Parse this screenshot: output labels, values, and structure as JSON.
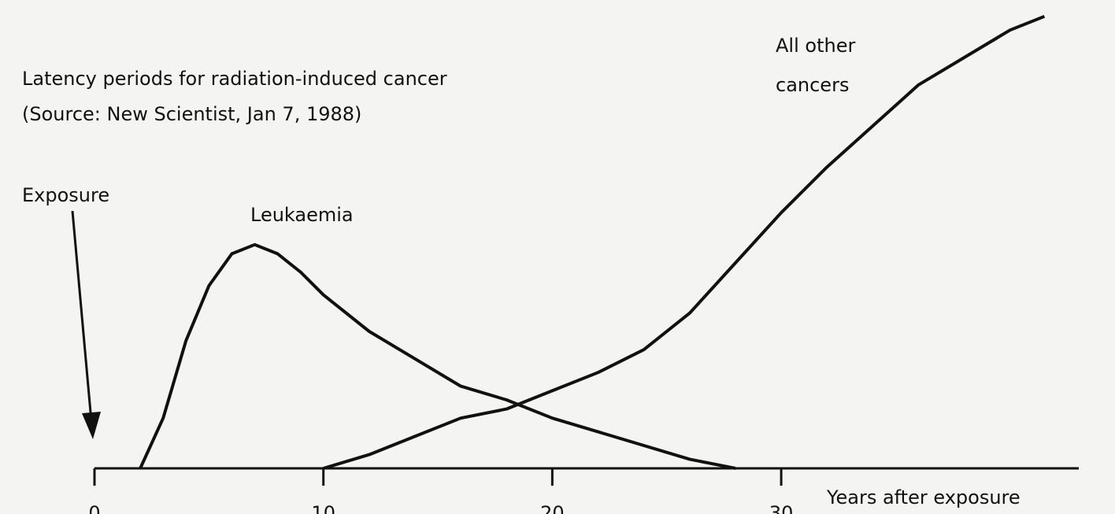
{
  "chart_data": {
    "type": "line",
    "title": "Latency periods for radiation-induced cancer",
    "subtitle": "(Source: New Scientist, Jan 7, 1988)",
    "annotations": [
      "Exposure"
    ],
    "x_label": "Years after exposure",
    "xlim": [
      0,
      43
    ],
    "xticks": [
      0,
      10,
      20,
      30
    ],
    "ylim": [
      0,
      100
    ],
    "series": [
      {
        "name": "Leukaemia",
        "color": "#111111",
        "x": [
          2,
          3,
          4,
          5,
          6,
          7,
          8,
          9,
          10,
          12,
          14,
          16,
          18,
          20,
          22,
          24,
          26,
          27,
          28
        ],
        "values": [
          0,
          11,
          28,
          40,
          47,
          49,
          47,
          43,
          38,
          30,
          24,
          18,
          15,
          11,
          8,
          5,
          2,
          1,
          0
        ]
      },
      {
        "name": "All other cancers",
        "color": "#111111",
        "x": [
          10,
          12,
          14,
          16,
          18,
          20,
          22,
          24,
          26,
          28,
          30,
          32,
          34,
          36,
          38,
          40,
          41.5
        ],
        "values": [
          0,
          3,
          7,
          11,
          13,
          17,
          21,
          26,
          34,
          45,
          56,
          66,
          75,
          84,
          90,
          96,
          99
        ]
      }
    ]
  }
}
